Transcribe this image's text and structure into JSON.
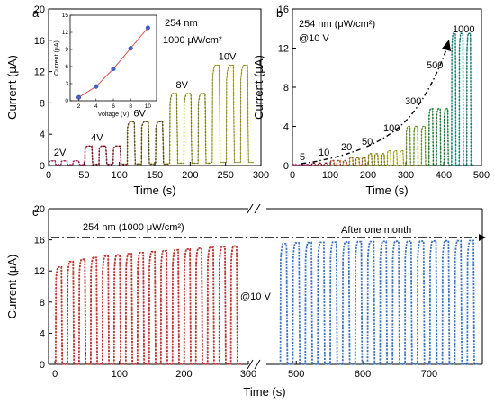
{
  "chart_data": [
    {
      "panel": "a",
      "type": "line",
      "xlabel": "Time (s)",
      "ylabel": "Current (μA)",
      "xlim": [
        0,
        300
      ],
      "ylim": [
        0,
        20
      ],
      "xticks": [
        0,
        50,
        100,
        150,
        200,
        250,
        300
      ],
      "yticks": [
        0,
        4,
        8,
        12,
        16,
        20
      ],
      "annotations": [
        "254 nm",
        "1000 μW/cm²"
      ],
      "groups": [
        {
          "label": "2V",
          "start": 0,
          "end": 50,
          "cycles": 3,
          "on": 0.6,
          "dark": 0.1,
          "color": "#d43c8a"
        },
        {
          "label": "4V",
          "start": 50,
          "end": 110,
          "cycles": 3,
          "on": 2.5,
          "dark": 0.15,
          "color": "#b0182a"
        },
        {
          "label": "6V",
          "start": 110,
          "end": 170,
          "cycles": 3,
          "on": 5.6,
          "dark": 0.2,
          "color": "#8a6a10"
        },
        {
          "label": "8V",
          "start": 170,
          "end": 230,
          "cycles": 3,
          "on": 9.2,
          "dark": 0.3,
          "color": "#b7c020"
        },
        {
          "label": "10V",
          "start": 230,
          "end": 290,
          "cycles": 3,
          "on": 12.8,
          "dark": 0.4,
          "color": "#e6e030"
        }
      ],
      "inset": {
        "xlabel": "Voltage (V)",
        "ylabel": "Current (μA)",
        "xlim": [
          1,
          11
        ],
        "ylim": [
          0,
          15
        ],
        "xticks": [
          2,
          4,
          6,
          8,
          10
        ],
        "yticks": [
          0,
          3,
          6,
          9,
          12,
          15
        ],
        "x": [
          2,
          4,
          6,
          8,
          10
        ],
        "y": [
          0.6,
          2.5,
          5.6,
          9.2,
          12.8
        ]
      }
    },
    {
      "panel": "b",
      "type": "line",
      "xlabel": "Time (s)",
      "ylabel": "Current (μA)",
      "xlim": [
        0,
        500
      ],
      "ylim": [
        0,
        16
      ],
      "xticks": [
        0,
        100,
        200,
        300,
        400,
        500
      ],
      "yticks": [
        0,
        4,
        8,
        12,
        16
      ],
      "annotations": [
        "254 nm (μW/cm²)",
        "@10 V"
      ],
      "groups": [
        {
          "label": "5",
          "start": 0,
          "end": 50,
          "cycles": 3,
          "on": 0.1,
          "color": "#cc3a8a"
        },
        {
          "label": "10",
          "start": 50,
          "end": 100,
          "cycles": 3,
          "on": 0.25,
          "color": "#b71c2e"
        },
        {
          "label": "20",
          "start": 100,
          "end": 150,
          "cycles": 3,
          "on": 0.5,
          "color": "#d8571c"
        },
        {
          "label": "50",
          "start": 150,
          "end": 200,
          "cycles": 3,
          "on": 0.8,
          "color": "#c88a18"
        },
        {
          "label": "100",
          "start": 200,
          "end": 250,
          "cycles": 3,
          "on": 1.2,
          "color": "#b6b21a"
        },
        {
          "label": "",
          "start": 250,
          "end": 300,
          "cycles": 3,
          "on": 1.5,
          "color": "#d6d632"
        },
        {
          "label": "300",
          "start": 300,
          "end": 360,
          "cycles": 3,
          "on": 4.0,
          "color": "#8cc43a"
        },
        {
          "label": "500",
          "start": 360,
          "end": 420,
          "cycles": 3,
          "on": 5.8,
          "color": "#20a840"
        },
        {
          "label": "1000",
          "start": 420,
          "end": 480,
          "cycles": 3,
          "on": 13.5,
          "color": "#16a59a"
        }
      ]
    },
    {
      "panel": "c",
      "type": "line",
      "xlabel": "Time (s)",
      "ylabel": "Current (μA)",
      "ylim": [
        0,
        20
      ],
      "yticks": [
        0,
        4,
        8,
        12,
        16,
        20
      ],
      "segments": [
        {
          "xlim": [
            -10,
            300
          ],
          "xticks": [
            0,
            100,
            200,
            300
          ],
          "start": 0,
          "end": 290,
          "cycles": 16,
          "on_first": 12.5,
          "on_last": 15.2,
          "color": "#b0261c"
        },
        {
          "xlim": [
            455,
            780
          ],
          "xticks": [
            500,
            600,
            700
          ],
          "start": 475,
          "end": 775,
          "cycles": 16,
          "on_first": 15.5,
          "on_last": 15.9,
          "color": "#3a73c2"
        }
      ],
      "reference_line": 16.3,
      "annotations": [
        "254 nm (1000 μW/cm²)",
        "After one month",
        "@10 V"
      ]
    }
  ],
  "panels": {
    "a": "a",
    "b": "b",
    "c": "c"
  },
  "texts": {
    "a_ann1": "254 nm",
    "a_ann2": "1000 μW/cm²",
    "b_ann1": "254 nm (μW/cm²)",
    "b_ann2": "@10 V",
    "c_ann1": "254 nm (1000 μW/cm²)",
    "c_ann2": "After one month",
    "c_ann3": "@10 V"
  }
}
